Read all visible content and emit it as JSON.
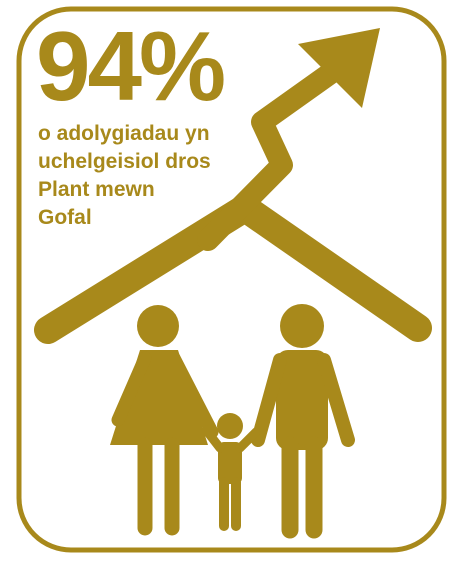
{
  "statistic": "94%",
  "caption_lines": [
    "o adolygiadau yn",
    "uchelgeisiol dros",
    "Plant mewn",
    "Gofal"
  ]
}
